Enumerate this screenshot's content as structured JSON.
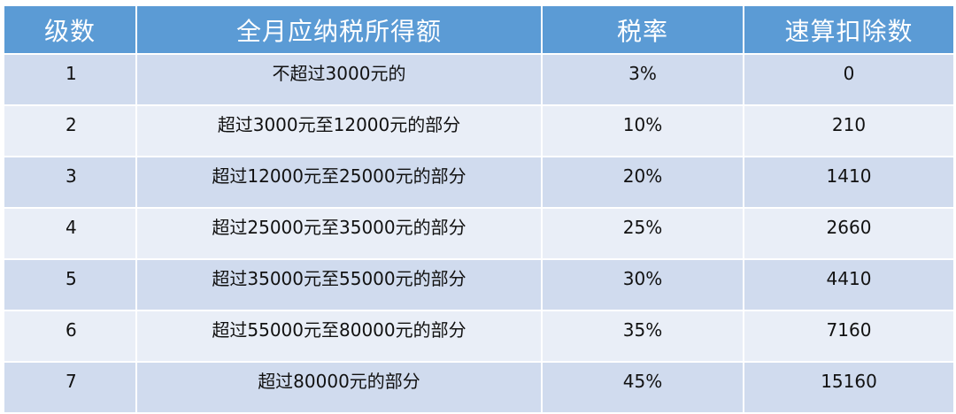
{
  "table": {
    "headers": {
      "level": "级数",
      "range": "全月应纳税所得额",
      "rate": "税率",
      "deduction": "速算扣除数"
    },
    "rows": [
      {
        "level": "1",
        "range": "不超过3000元的",
        "rate": "3%",
        "deduction": "0"
      },
      {
        "level": "2",
        "range": "超过3000元至12000元的部分",
        "rate": "10%",
        "deduction": "210"
      },
      {
        "level": "3",
        "range": "超过12000元至25000元的部分",
        "rate": "20%",
        "deduction": "1410"
      },
      {
        "level": "4",
        "range": "超过25000元至35000元的部分",
        "rate": "25%",
        "deduction": "2660"
      },
      {
        "level": "5",
        "range": "超过35000元至55000元的部分",
        "rate": "30%",
        "deduction": "4410"
      },
      {
        "level": "6",
        "range": "超过55000元至80000元的部分",
        "rate": "35%",
        "deduction": "7160"
      },
      {
        "level": "7",
        "range": "超过80000元的部分",
        "rate": "45%",
        "deduction": "15160"
      }
    ]
  },
  "colors": {
    "header_bg": "#5b9bd5",
    "row_odd_bg": "#d0dbee",
    "row_even_bg": "#e9eef7"
  }
}
